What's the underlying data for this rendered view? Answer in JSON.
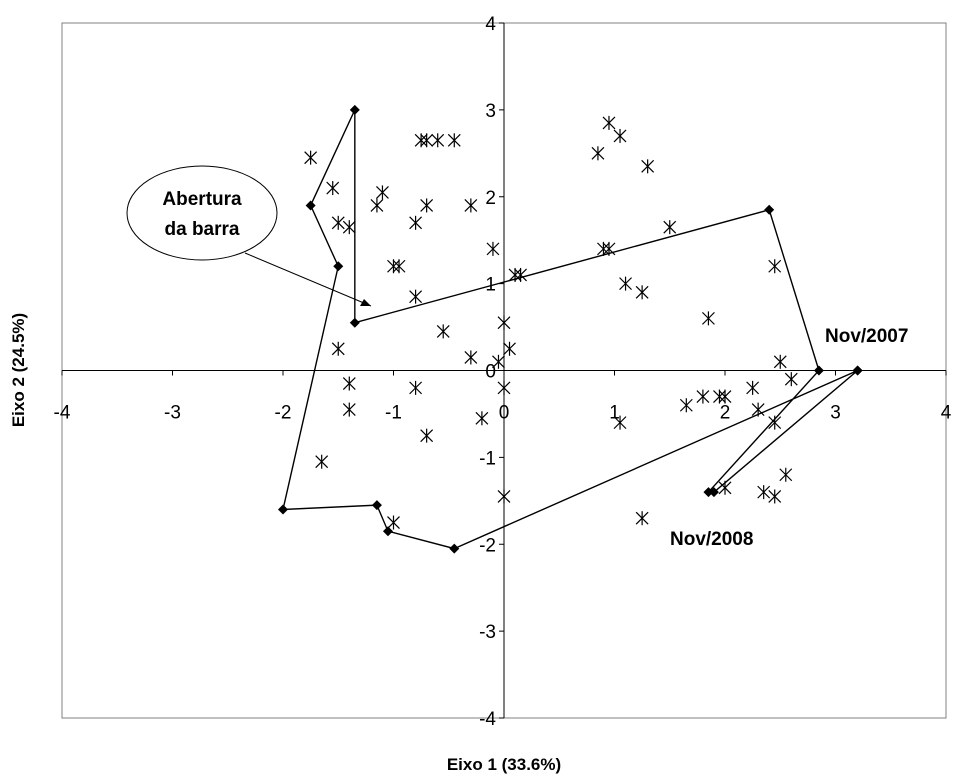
{
  "chart_data": {
    "type": "scatter",
    "xlabel": "Eixo 1 (33.6%)",
    "ylabel": "Eixo 2 (24.5%)",
    "xlim": [
      -4,
      4
    ],
    "ylim": [
      -4,
      4
    ],
    "x_ticks": [
      "-4",
      "-3",
      "-2",
      "-1",
      "0",
      "1",
      "2",
      "3",
      "4"
    ],
    "y_ticks": [
      "4",
      "3",
      "2",
      "1",
      "0",
      "-1",
      "-2",
      "-3",
      "-4"
    ],
    "grid": false,
    "series": [
      {
        "marker": "asterisk",
        "line": false,
        "points": [
          [
            -1.75,
            2.45
          ],
          [
            -1.55,
            2.1
          ],
          [
            -1.5,
            1.7
          ],
          [
            -1.4,
            1.65
          ],
          [
            -1.15,
            1.9
          ],
          [
            -1.1,
            2.05
          ],
          [
            -1.0,
            1.2
          ],
          [
            -0.95,
            1.2
          ],
          [
            -0.8,
            1.7
          ],
          [
            -0.75,
            2.65
          ],
          [
            -0.7,
            2.65
          ],
          [
            -0.6,
            2.65
          ],
          [
            -0.45,
            2.65
          ],
          [
            -0.7,
            1.9
          ],
          [
            -0.3,
            1.9
          ],
          [
            -0.8,
            0.85
          ],
          [
            -0.55,
            0.45
          ],
          [
            -0.3,
            0.15
          ],
          [
            -0.1,
            1.4
          ],
          [
            -0.05,
            0.1
          ],
          [
            0.0,
            0.55
          ],
          [
            0.05,
            0.25
          ],
          [
            0.1,
            1.1
          ],
          [
            0.15,
            1.1
          ],
          [
            0.0,
            -0.2
          ],
          [
            -0.2,
            -0.55
          ],
          [
            0.0,
            -1.45
          ],
          [
            -0.8,
            -0.2
          ],
          [
            -0.7,
            -0.75
          ],
          [
            -1.4,
            -0.15
          ],
          [
            -1.4,
            -0.45
          ],
          [
            -1.5,
            0.25
          ],
          [
            -1.65,
            -1.05
          ],
          [
            -1.0,
            -1.75
          ],
          [
            0.85,
            2.5
          ],
          [
            0.95,
            2.85
          ],
          [
            1.05,
            2.7
          ],
          [
            1.3,
            2.35
          ],
          [
            0.9,
            1.4
          ],
          [
            0.95,
            1.4
          ],
          [
            1.1,
            1.0
          ],
          [
            1.25,
            0.9
          ],
          [
            1.5,
            1.65
          ],
          [
            1.85,
            0.6
          ],
          [
            2.45,
            1.2
          ],
          [
            2.5,
            0.1
          ],
          [
            2.6,
            -0.1
          ],
          [
            1.65,
            -0.4
          ],
          [
            1.8,
            -0.3
          ],
          [
            1.95,
            -0.3
          ],
          [
            2.0,
            -0.3
          ],
          [
            2.25,
            -0.2
          ],
          [
            2.3,
            -0.45
          ],
          [
            2.45,
            -0.6
          ],
          [
            2.55,
            -1.2
          ],
          [
            2.0,
            -1.35
          ],
          [
            2.35,
            -1.4
          ],
          [
            2.45,
            -1.45
          ],
          [
            1.05,
            -0.6
          ],
          [
            1.25,
            -1.7
          ]
        ]
      },
      {
        "marker": "diamond",
        "line": true,
        "points": [
          [
            3.2,
            0.0
          ],
          [
            1.9,
            -1.4
          ],
          [
            1.85,
            -1.4
          ],
          [
            2.85,
            0.0
          ],
          [
            2.4,
            1.85
          ],
          [
            -1.35,
            0.55
          ],
          [
            -1.35,
            3.0
          ],
          [
            -1.75,
            1.9
          ],
          [
            -1.5,
            1.2
          ],
          [
            -2.0,
            -1.6
          ],
          [
            -1.15,
            -1.55
          ],
          [
            -1.05,
            -1.85
          ],
          [
            -0.45,
            -2.05
          ],
          [
            3.2,
            0.0
          ]
        ]
      }
    ],
    "annotations": [
      {
        "text": "Nov/2007",
        "x": 2.85,
        "y": 0.0
      },
      {
        "text": "Nov/2008",
        "x": 1.9,
        "y": -1.4
      },
      {
        "text_lines": [
          "Abertura",
          "da barra"
        ],
        "points_to": [
          -1.3,
          0.75
        ]
      }
    ]
  }
}
